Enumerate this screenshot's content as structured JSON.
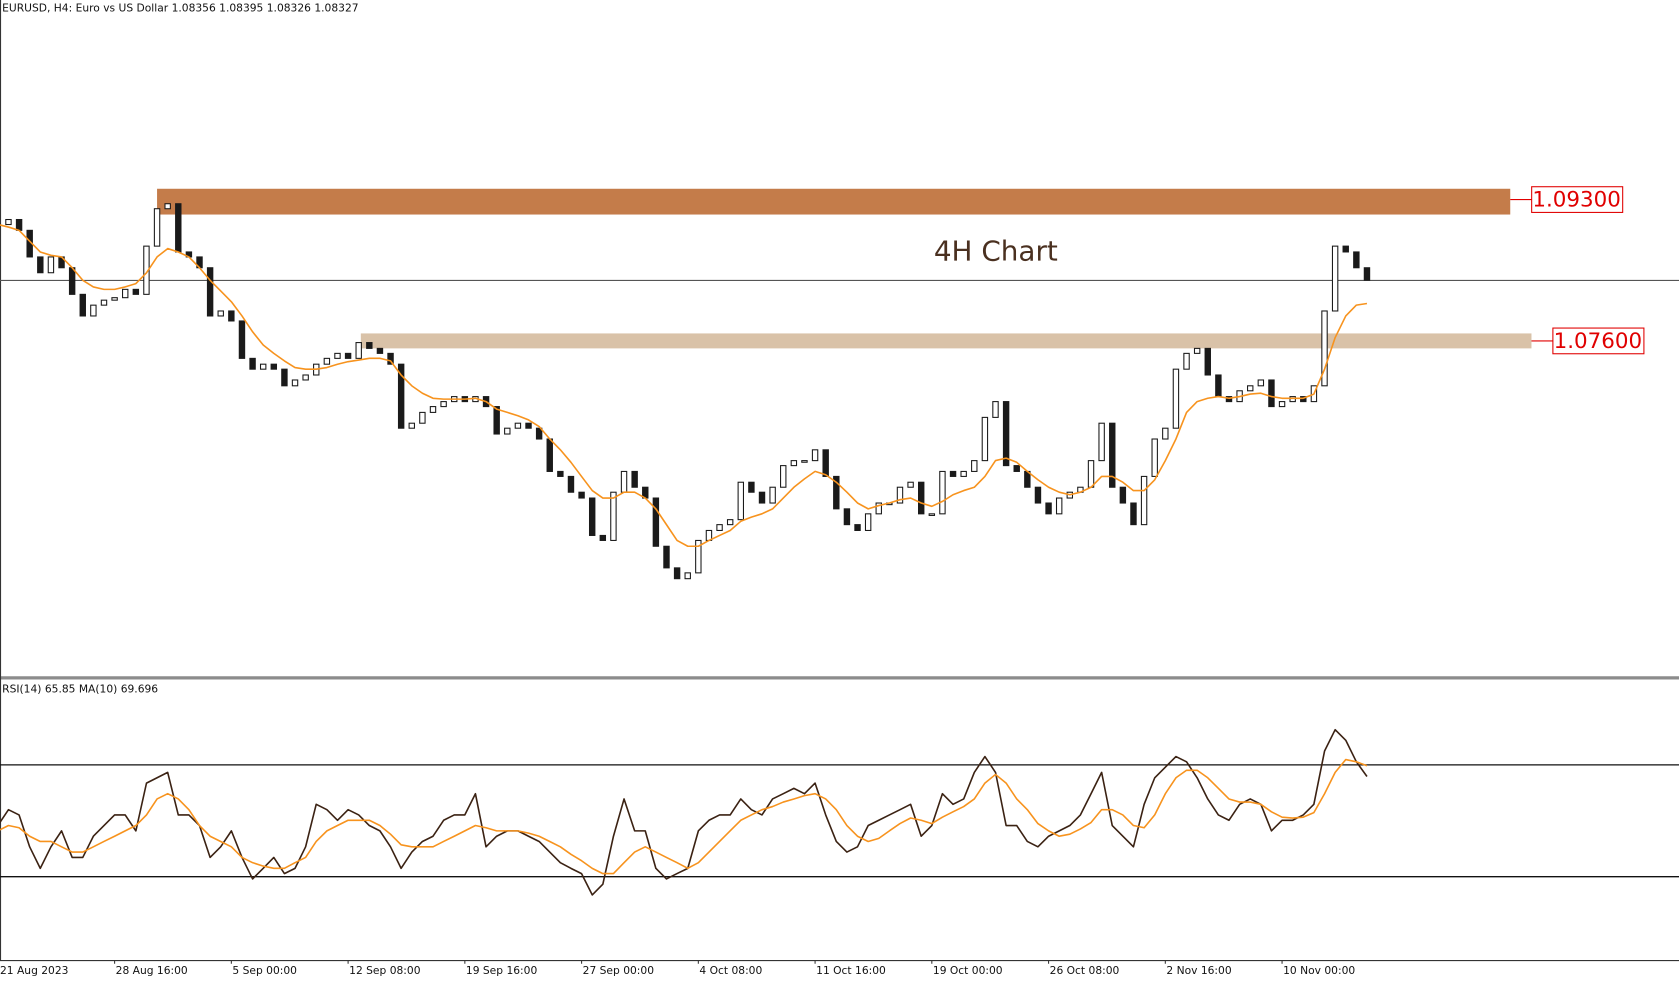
{
  "header": "EURUSD, H4:  Euro vs US Dollar  1.08356 1.08395 1.08326 1.08327",
  "chart_data": [
    {
      "type": "candlestick",
      "annotation": "4H Chart",
      "close": [
        1.09,
        1.0906,
        1.0893,
        1.0861,
        1.0842,
        1.0861,
        1.0848,
        1.0816,
        1.079,
        1.0803,
        1.0809,
        1.0812,
        1.0822,
        1.0816,
        1.0874,
        1.0919,
        1.0925,
        1.0867,
        1.0861,
        1.0848,
        1.079,
        1.0796,
        1.0784,
        1.0739,
        1.0726,
        1.0732,
        1.0726,
        1.0706,
        1.0713,
        1.0719,
        1.0732,
        1.0739,
        1.0745,
        1.0739,
        1.0758,
        1.0751,
        1.0745,
        1.0732,
        1.0655,
        1.0661,
        1.0674,
        1.0681,
        1.0687,
        1.0693,
        1.0687,
        1.0693,
        1.0681,
        1.0648,
        1.0655,
        1.0661,
        1.0655,
        1.0642,
        1.0603,
        1.0597,
        1.0578,
        1.0571,
        1.0526,
        1.052,
        1.0578,
        1.0603,
        1.0584,
        1.0571,
        1.0513,
        1.0487,
        1.0474,
        1.0481,
        1.052,
        1.0532,
        1.0539,
        1.0545,
        1.059,
        1.0578,
        1.0565,
        1.0584,
        1.061,
        1.0616,
        1.0616,
        1.0629,
        1.0597,
        1.0558,
        1.0539,
        1.0532,
        1.0552,
        1.0565,
        1.0565,
        1.0584,
        1.059,
        1.0552,
        1.0552,
        1.0603,
        1.0597,
        1.0603,
        1.0616,
        1.0668,
        1.0687,
        1.061,
        1.0603,
        1.0584,
        1.0565,
        1.0552,
        1.0571,
        1.0578,
        1.0584,
        1.0616,
        1.0661,
        1.0584,
        1.0565,
        1.0539,
        1.0597,
        1.0642,
        1.0655,
        1.0726,
        1.0745,
        1.0751,
        1.0719,
        1.0693,
        1.0687,
        1.07,
        1.0706,
        1.0713,
        1.0681,
        1.0687,
        1.0693,
        1.0687,
        1.0706,
        1.0796,
        1.0874,
        1.0867,
        1.0848,
        1.0833
      ],
      "color": "#1a1a1a",
      "up_color": "#ffffff",
      "ma_values": [
        1.09,
        1.0897,
        1.0893,
        1.088,
        1.0867,
        1.0863,
        1.0861,
        1.0848,
        1.0833,
        1.0825,
        1.0822,
        1.0822,
        1.0825,
        1.0829,
        1.0842,
        1.0861,
        1.0871,
        1.0867,
        1.0861,
        1.0848,
        1.0833,
        1.082,
        1.0807,
        1.079,
        1.0771,
        1.0755,
        1.0745,
        1.0736,
        1.0728,
        1.0726,
        1.0726,
        1.0728,
        1.0732,
        1.0735,
        1.0737,
        1.0739,
        1.0739,
        1.0736,
        1.0719,
        1.0706,
        1.0697,
        1.0691,
        1.069,
        1.069,
        1.069,
        1.0691,
        1.0687,
        1.0678,
        1.0674,
        1.067,
        1.0665,
        1.0657,
        1.0642,
        1.0629,
        1.0614,
        1.0597,
        1.058,
        1.0571,
        1.0571,
        1.0578,
        1.0578,
        1.0571,
        1.0558,
        1.0539,
        1.052,
        1.0513,
        1.0513,
        1.052,
        1.0526,
        1.0532,
        1.0543,
        1.0548,
        1.0552,
        1.0558,
        1.0571,
        1.0584,
        1.0594,
        1.0603,
        1.0599,
        1.059,
        1.0578,
        1.0565,
        1.0558,
        1.0562,
        1.0565,
        1.0569,
        1.0571,
        1.0565,
        1.0561,
        1.0567,
        1.0575,
        1.058,
        1.0584,
        1.0597,
        1.0616,
        1.0619,
        1.0614,
        1.0603,
        1.0593,
        1.0584,
        1.0578,
        1.0575,
        1.0578,
        1.0584,
        1.0597,
        1.0597,
        1.059,
        1.058,
        1.058,
        1.0593,
        1.0616,
        1.0642,
        1.0674,
        1.0687,
        1.0691,
        1.0693,
        1.0691,
        1.0693,
        1.0696,
        1.0697,
        1.0693,
        1.0691,
        1.0691,
        1.0691,
        1.0696,
        1.0726,
        1.0764,
        1.079,
        1.0803,
        1.0805
      ],
      "ma_color": "#f7931e",
      "price_line": 1.08327,
      "zones": [
        {
          "value": 1.093,
          "label": "1.09300",
          "range": [
            1.0912,
            1.0943
          ],
          "xrange": [
            15,
            142.5
          ],
          "color": "#c47c4a"
        },
        {
          "value": 1.076,
          "label": "1.07600",
          "range": [
            1.0751,
            1.0769
          ],
          "xrange": [
            34.2,
            144.5
          ],
          "color": "#d9c2a8"
        }
      ],
      "xlim": [
        0,
        158.4
      ],
      "ylim": [
        1.0356,
        1.117
      ]
    },
    {
      "type": "line",
      "title": "RSI(14) 65.85 MA(10) 69.696",
      "values": [
        48.3,
        54.0,
        52.1,
        40.7,
        33.0,
        40.7,
        46.4,
        36.9,
        36.9,
        44.5,
        48.3,
        52.1,
        52.1,
        46.4,
        63.5,
        65.4,
        67.3,
        52.1,
        52.1,
        48.3,
        36.9,
        40.7,
        46.4,
        36.9,
        29.2,
        33.0,
        36.9,
        31.1,
        33.0,
        40.7,
        55.9,
        54.0,
        50.2,
        54.0,
        52.1,
        48.3,
        46.4,
        40.7,
        33.0,
        38.8,
        42.6,
        44.5,
        50.2,
        52.1,
        52.1,
        59.7,
        40.7,
        44.5,
        46.4,
        46.4,
        44.5,
        42.6,
        38.8,
        35.0,
        33.0,
        31.1,
        23.5,
        27.3,
        44.5,
        57.8,
        46.4,
        46.4,
        33.0,
        29.2,
        31.1,
        33.0,
        46.4,
        50.2,
        52.1,
        52.1,
        57.8,
        54.0,
        52.1,
        57.8,
        59.7,
        61.6,
        59.7,
        63.5,
        52.1,
        42.6,
        38.8,
        40.7,
        48.3,
        50.2,
        52.1,
        54.0,
        55.9,
        44.5,
        48.3,
        59.7,
        55.9,
        57.8,
        67.3,
        73.0,
        67.3,
        48.3,
        48.3,
        42.6,
        40.7,
        44.5,
        46.4,
        48.3,
        52.1,
        59.7,
        67.3,
        48.3,
        44.5,
        40.7,
        55.9,
        65.4,
        69.2,
        73.0,
        71.1,
        65.4,
        57.8,
        52.1,
        50.2,
        55.9,
        57.8,
        55.9,
        46.4,
        50.2,
        50.2,
        52.1,
        55.9,
        75.0,
        82.6,
        78.8,
        71.1,
        65.85
      ],
      "color": "#3b2213",
      "ma_values": [
        46.4,
        48.3,
        47.5,
        44.5,
        42.6,
        42.6,
        40.7,
        38.8,
        38.8,
        40.7,
        42.6,
        44.5,
        46.4,
        48.3,
        52.1,
        57.8,
        59.7,
        57.8,
        54.0,
        48.3,
        44.5,
        42.6,
        40.7,
        36.9,
        35.0,
        33.8,
        33.0,
        33.0,
        35.0,
        36.9,
        42.6,
        46.4,
        48.3,
        50.2,
        50.2,
        50.2,
        48.3,
        45.2,
        41.4,
        40.7,
        40.7,
        40.7,
        42.6,
        44.5,
        46.4,
        48.3,
        47.5,
        46.4,
        46.4,
        46.4,
        45.6,
        44.5,
        42.6,
        40.7,
        38.0,
        35.7,
        33.0,
        31.1,
        31.1,
        35.0,
        38.8,
        40.7,
        38.8,
        36.9,
        35.0,
        33.0,
        35.0,
        38.8,
        42.6,
        46.4,
        50.2,
        52.1,
        54.0,
        55.1,
        56.7,
        57.8,
        59.0,
        59.7,
        57.8,
        54.0,
        48.3,
        44.5,
        42.6,
        43.7,
        46.4,
        49.0,
        51.0,
        50.2,
        49.0,
        51.3,
        53.2,
        55.1,
        57.8,
        63.5,
        66.6,
        63.5,
        57.8,
        54.0,
        49.0,
        46.4,
        44.5,
        45.2,
        47.1,
        49.4,
        54.0,
        54.0,
        52.1,
        48.3,
        47.5,
        52.1,
        59.7,
        65.4,
        68.1,
        68.1,
        65.4,
        61.6,
        57.8,
        56.7,
        56.7,
        55.9,
        53.2,
        51.3,
        51.0,
        51.3,
        52.9,
        59.7,
        67.3,
        71.9,
        71.1,
        69.696
      ],
      "ma_color": "#f7931e",
      "levels": [
        70,
        30
      ],
      "ylim": [
        0,
        100
      ],
      "xlim": [
        0,
        158.4
      ],
      "xticks": [
        {
          "value": 0,
          "label": "21 Aug 2023"
        },
        {
          "value": 11,
          "label": "28 Aug 16:00"
        },
        {
          "value": 22,
          "label": "5 Sep 00:00"
        },
        {
          "value": 33,
          "label": "12 Sep 08:00"
        },
        {
          "value": 44,
          "label": "19 Sep 16:00"
        },
        {
          "value": 55,
          "label": "27 Sep 00:00"
        },
        {
          "value": 66,
          "label": "4 Oct 08:00"
        },
        {
          "value": 77,
          "label": "11 Oct 16:00"
        },
        {
          "value": 88,
          "label": "19 Oct 00:00"
        },
        {
          "value": 99,
          "label": "26 Oct 08:00"
        },
        {
          "value": 110,
          "label": "2 Nov 16:00"
        },
        {
          "value": 121,
          "label": "10 Nov 00:00"
        }
      ]
    }
  ]
}
